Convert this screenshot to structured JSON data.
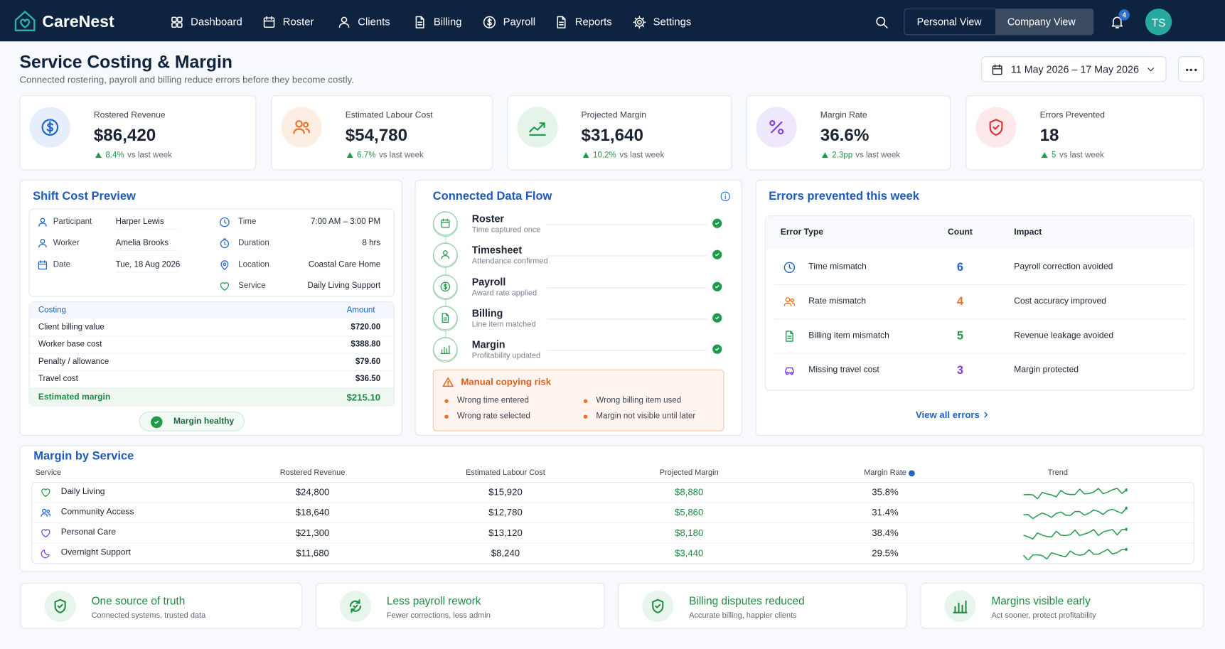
{
  "nav": {
    "brand": "CareNest",
    "items": [
      "Dashboard",
      "Roster",
      "Clients",
      "Billing",
      "Payroll",
      "Reports",
      "Settings"
    ],
    "view_toggle": [
      "Personal View",
      "Company View"
    ],
    "notifications": 4,
    "avatar": "TS"
  },
  "header": {
    "title": "Service Costing & Margin",
    "subtitle": "Connected rostering, payroll and billing reduce errors before they become costly.",
    "date_range": "11 May 2026 – 17 May 2026"
  },
  "kpis": [
    {
      "label": "Rostered Revenue",
      "value": "$86,420",
      "change": "8.4%",
      "note": "vs last week"
    },
    {
      "label": "Estimated Labour Cost",
      "value": "$54,780",
      "change": "6.7%",
      "note": "vs last week"
    },
    {
      "label": "Projected Margin",
      "value": "$31,640",
      "change": "10.2%",
      "note": "vs last week"
    },
    {
      "label": "Margin Rate",
      "value": "36.6%",
      "change": "2.3pp",
      "note": "vs last week"
    },
    {
      "label": "Errors Prevented",
      "value": "18",
      "change": "5",
      "note": "vs last week"
    }
  ],
  "shift_preview": {
    "title": "Shift Cost Preview",
    "details": [
      [
        "Participant",
        "Harper Lewis"
      ],
      [
        "Worker",
        "Amelia Brooks"
      ],
      [
        "Date",
        "Tue, 18 Aug 2026"
      ],
      [
        "Time",
        "7:00 AM – 3:00 PM"
      ],
      [
        "Duration",
        "8 hrs"
      ],
      [
        "Location",
        "Coastal Care Home"
      ],
      [
        "Service",
        "Daily Living Support"
      ]
    ],
    "costing_header": [
      "Costing",
      "Amount"
    ],
    "costing_rows": [
      [
        "Client billing value",
        "$720.00"
      ],
      [
        "Worker base cost",
        "$388.80"
      ],
      [
        "Penalty / allowance",
        "$79.60"
      ],
      [
        "Travel cost",
        "$36.50"
      ]
    ],
    "total": [
      "Estimated margin",
      "$215.10"
    ],
    "badge": "Margin healthy"
  },
  "data_flow": {
    "title": "Connected Data Flow",
    "steps": [
      {
        "name": "Roster",
        "note": "Time captured once"
      },
      {
        "name": "Timesheet",
        "note": "Attendance confirmed"
      },
      {
        "name": "Payroll",
        "note": "Award rate applied"
      },
      {
        "name": "Billing",
        "note": "Line item matched"
      },
      {
        "name": "Margin",
        "note": "Profitability updated"
      }
    ],
    "risk": {
      "title": "Manual copying risk",
      "items": [
        "Wrong time entered",
        "Wrong billing item used",
        "Wrong rate selected",
        "Margin not visible until later"
      ]
    }
  },
  "errors": {
    "title": "Errors prevented this week",
    "columns": [
      "Error Type",
      "Count",
      "Impact"
    ],
    "rows": [
      [
        "Time mismatch",
        6,
        "Payroll correction avoided"
      ],
      [
        "Rate mismatch",
        4,
        "Cost accuracy improved"
      ],
      [
        "Billing item mismatch",
        5,
        "Revenue leakage avoided"
      ],
      [
        "Missing travel cost",
        3,
        "Margin protected"
      ]
    ],
    "link": "View all errors"
  },
  "margin_by_service": {
    "title": "Margin by Service",
    "columns": [
      "Service",
      "Rostered Revenue",
      "Estimated Labour Cost",
      "Projected Margin",
      "Margin Rate",
      "Trend"
    ],
    "rows": [
      [
        "Daily Living",
        "$24,800",
        "$15,920",
        "$8,880",
        "35.8%"
      ],
      [
        "Community Access",
        "$18,640",
        "$12,780",
        "$5,860",
        "31.4%"
      ],
      [
        "Personal Care",
        "$21,300",
        "$13,120",
        "$8,180",
        "38.4%"
      ],
      [
        "Overnight Support",
        "$11,680",
        "$8,240",
        "$3,440",
        "29.5%"
      ]
    ]
  },
  "benefits": [
    {
      "title": "One source of truth",
      "text": "Connected systems, trusted data"
    },
    {
      "title": "Less payroll rework",
      "text": "Fewer corrections, less admin"
    },
    {
      "title": "Billing disputes reduced",
      "text": "Accurate billing, happier clients"
    },
    {
      "title": "Margins visible early",
      "text": "Act sooner, protect profitability"
    }
  ]
}
